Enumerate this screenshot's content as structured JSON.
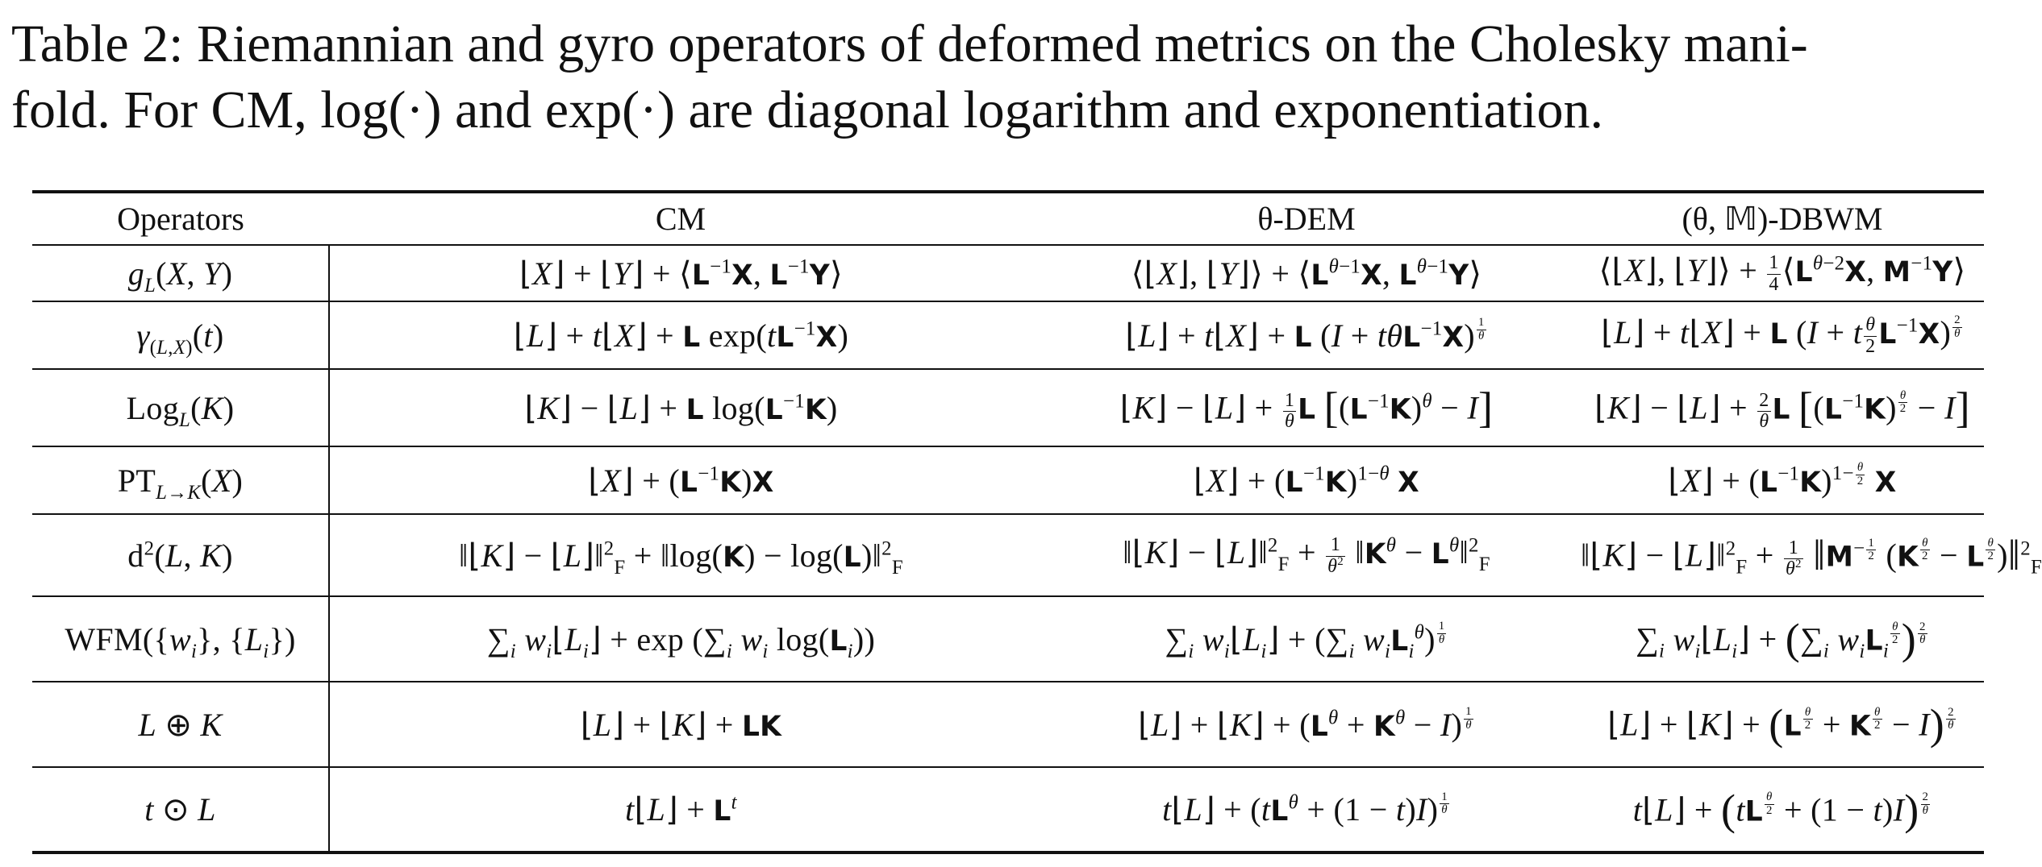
{
  "caption": {
    "line1": "Table 2: Riemannian and gyro operators of deformed metrics on the Cholesky mani-",
    "line2": "fold. For CM, log(·) and exp(·) are diagonal logarithm and exponentiation."
  },
  "table": {
    "headers": [
      "Operators",
      "CM",
      "θ-DEM",
      "(θ, 𝕄)-DBWM"
    ],
    "rows": [
      {
        "op": "g_L(X, Y)",
        "cm": "⌊X⌋ + ⌊Y⌋ + ⟨𝕃⁻¹𝕏, 𝕃⁻¹𝕐⟩",
        "dem": "⟨⌊X⌋, ⌊Y⌋⟩ + ⟨𝕃^{θ−1}𝕏, 𝕃^{θ−1}𝕐⟩",
        "dbwm": "⟨⌊X⌋, ⌊Y⌋⟩ + (1/4)⟨𝕃^{θ−2}𝕏, 𝕄⁻¹𝕐⟩"
      },
      {
        "op": "γ_(L,X)(t)",
        "cm": "⌊L⌋ + t⌊X⌋ + 𝕃 exp(t𝕃⁻¹𝕏)",
        "dem": "⌊L⌋ + t⌊X⌋ + 𝕃 (I + tθ𝕃⁻¹𝕏)^{1/θ}",
        "dbwm": "⌊L⌋ + t⌊X⌋ + 𝕃 (I + t(θ/2)𝕃⁻¹𝕏)^{2/θ}"
      },
      {
        "op": "Log_L(K)",
        "cm": "⌊K⌋ − ⌊L⌋ + 𝕃 log(𝕃⁻¹𝕂)",
        "dem": "⌊K⌋ − ⌊L⌋ + (1/θ)𝕃 [(𝕃⁻¹𝕂)^θ − I]",
        "dbwm": "⌊K⌋ − ⌊L⌋ + (2/θ)𝕃 [(𝕃⁻¹𝕂)^{θ/2} − I]"
      },
      {
        "op": "PT_{L→K}(X)",
        "cm": "⌊X⌋ + (𝕃⁻¹𝕂)𝕏",
        "dem": "⌊X⌋ + (𝕃⁻¹𝕂)^{1−θ} 𝕏",
        "dbwm": "⌊X⌋ + (𝕃⁻¹𝕂)^{1−θ/2} 𝕏"
      },
      {
        "op": "d²(L, K)",
        "cm": "‖⌊K⌋ − ⌊L⌋‖²_F + ‖log(𝕂) − log(𝕃)‖²_F",
        "dem": "‖⌊K⌋ − ⌊L⌋‖²_F + (1/θ²) ‖𝕂^θ − 𝕃^θ‖²_F",
        "dbwm": "‖⌊K⌋ − ⌊L⌋‖²_F + (1/θ²) ‖𝕄^{−1/2} (𝕂^{θ/2} − 𝕃^{θ/2})‖²_F"
      },
      {
        "op": "WFM({w_i}, {L_i})",
        "cm": "Σ_i w_i⌊L_i⌋ + exp (Σ_i w_i log(𝕃_i))",
        "dem": "Σ_i w_i⌊L_i⌋ + (Σ_i w_i𝕃_i^θ)^{1/θ}",
        "dbwm": "Σ_i w_i⌊L_i⌋ + (Σ_i w_i𝕃_i^{θ/2})^{2/θ}"
      },
      {
        "op": "L ⊕ K",
        "cm": "⌊L⌋ + ⌊K⌋ + 𝕃𝕂",
        "dem": "⌊L⌋ + ⌊K⌋ + (𝕃^θ + 𝕂^θ − I)^{1/θ}",
        "dbwm": "⌊L⌋ + ⌊K⌋ + (𝕃^{θ/2} + 𝕂^{θ/2} − I)^{2/θ}"
      },
      {
        "op": "t ⊙ L",
        "cm": "t⌊L⌋ + 𝕃^t",
        "dem": "t⌊L⌋ + (t𝕃^θ + (1 − t)I)^{1/θ}",
        "dbwm": "t⌊L⌋ + (t𝕃^{θ/2} + (1 − t)I)^{2/θ}"
      }
    ]
  }
}
